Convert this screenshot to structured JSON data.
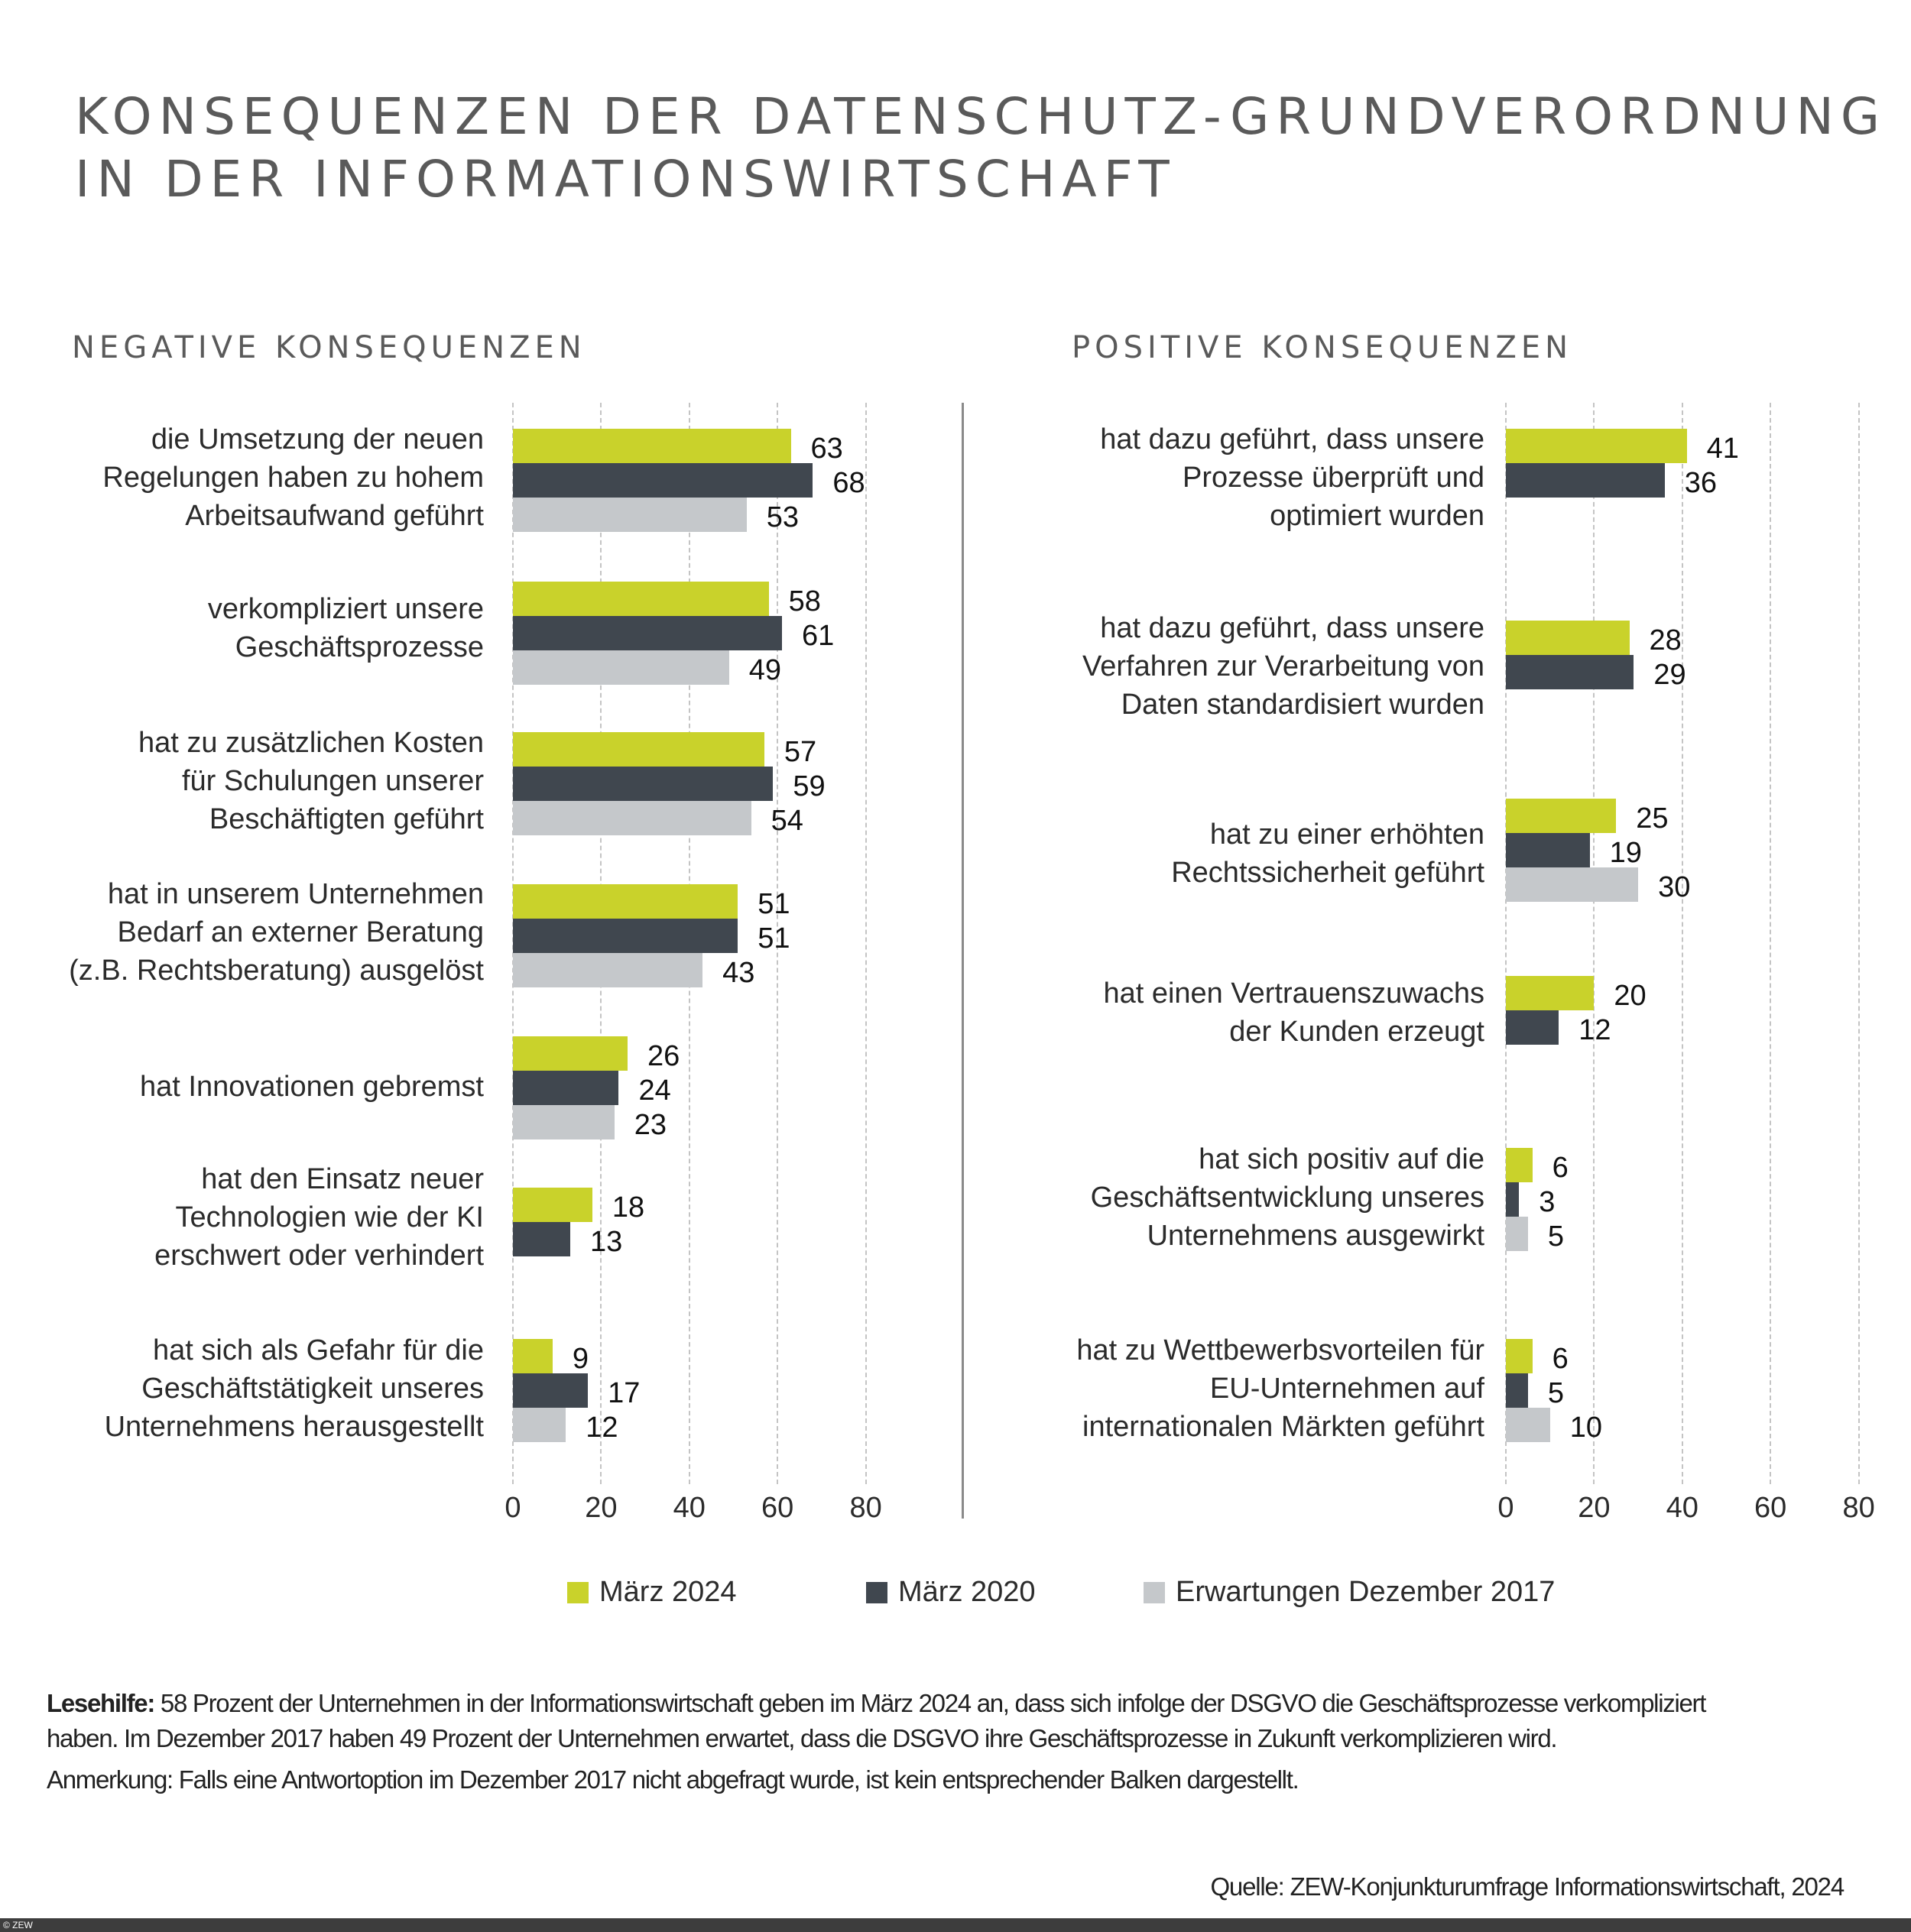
{
  "title": [
    "KONSEQUENZEN DER DATENSCHUTZ-GRUNDVERORDNUNG",
    "IN DER INFORMATIONSWIRTSCHAFT"
  ],
  "colors": {
    "maerz2024": "#c9d22b",
    "maerz2020": "#40474f",
    "dez2017": "#c5c8cb"
  },
  "legend": [
    {
      "name": "März 2024",
      "color": "#c9d22b"
    },
    {
      "name": "März 2020",
      "color": "#40474f"
    },
    {
      "name": "Erwartungen Dezember 2017",
      "color": "#c5c8cb"
    }
  ],
  "chart_data": [
    {
      "type": "bar",
      "orientation": "horizontal",
      "title": "NEGATIVE KONSEQUENZEN",
      "xlim": [
        0,
        80
      ],
      "xticks": [
        "0",
        "20",
        "40",
        "60",
        "80"
      ],
      "grid": true,
      "categories": [
        [
          "die Umsetzung der neuen",
          "Regelungen haben zu hohem",
          "Arbeitsaufwand geführt"
        ],
        [
          "verkompliziert unsere",
          "Geschäftsprozesse"
        ],
        [
          "hat zu zusätzlichen Kosten",
          "für Schulungen unserer",
          "Beschäftigten geführt"
        ],
        [
          "hat in unserem Unternehmen",
          "Bedarf an externer Beratung",
          "(z.B. Rechtsberatung) ausgelöst"
        ],
        [
          "hat Innovationen gebremst"
        ],
        [
          "hat den Einsatz neuer",
          "Technologien wie der KI",
          "erschwert oder verhindert"
        ],
        [
          "hat sich als Gefahr für die",
          "Geschäftstätigkeit unseres",
          "Unternehmens herausgestellt"
        ]
      ],
      "series": [
        {
          "name": "März 2024",
          "values": [
            63,
            58,
            57,
            51,
            26,
            18,
            9
          ]
        },
        {
          "name": "März 2020",
          "values": [
            68,
            61,
            59,
            51,
            24,
            13,
            17
          ]
        },
        {
          "name": "Erwartungen Dezember 2017",
          "values": [
            53,
            49,
            54,
            43,
            23,
            null,
            12
          ]
        }
      ]
    },
    {
      "type": "bar",
      "orientation": "horizontal",
      "title": "POSITIVE KONSEQUENZEN",
      "xlim": [
        0,
        80
      ],
      "xticks": [
        "0",
        "20",
        "40",
        "60",
        "80"
      ],
      "grid": true,
      "categories": [
        [
          "hat dazu geführt, dass unsere",
          "Prozesse überprüft und",
          "optimiert wurden"
        ],
        [
          "hat dazu geführt, dass unsere",
          "Verfahren zur Verarbeitung von",
          "Daten standardisiert wurden"
        ],
        [
          "hat zu einer erhöhten",
          "Rechtssicherheit geführt"
        ],
        [
          "hat einen Vertrauenszuwachs",
          "der Kunden erzeugt"
        ],
        [
          "hat sich positiv auf die",
          "Geschäftsentwicklung unseres",
          "Unternehmens ausgewirkt"
        ],
        [
          "hat zu Wettbewerbsvorteilen für",
          "EU-Unternehmen auf",
          "internationalen Märkten geführt"
        ]
      ],
      "series": [
        {
          "name": "März 2024",
          "values": [
            41,
            28,
            25,
            20,
            6,
            6
          ]
        },
        {
          "name": "März 2020",
          "values": [
            36,
            29,
            19,
            12,
            3,
            5
          ]
        },
        {
          "name": "Erwartungen Dezember 2017",
          "values": [
            null,
            null,
            30,
            null,
            5,
            10
          ]
        }
      ]
    }
  ],
  "footnotes": {
    "lesehilfe_label": "Lesehilfe:",
    "lesehilfe_line1": " 58 Prozent der Unternehmen in der Informationswirtschaft geben im März 2024 an, dass sich infolge der DSGVO die Geschäftsprozesse verkompliziert",
    "lesehilfe_line2": "haben. Im Dezember 2017 haben 49 Prozent der Unternehmen erwartet, dass die DSGVO ihre Geschäftsprozesse in Zukunft verkomplizieren wird.",
    "anmerkung": "Anmerkung: Falls eine Antwortoption im Dezember 2017 nicht abgefragt wurde, ist kein entsprechender Balken dargestellt.",
    "quelle": "Quelle: ZEW-Konjunkturumfrage Informationswirtschaft, 2024",
    "copyright": "© ZEW"
  }
}
